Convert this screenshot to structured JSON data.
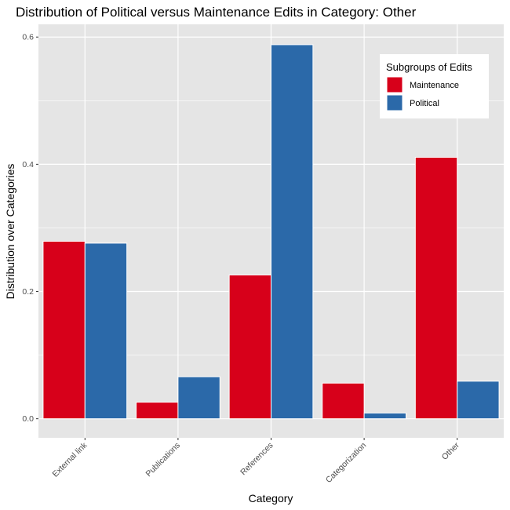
{
  "chart_data": {
    "type": "bar",
    "title": "Distribution of Political versus Maintenance Edits in Category: Other",
    "xlabel": "Category",
    "ylabel": "Distribution over Categories",
    "categories": [
      "External link",
      "Publications",
      "References",
      "Categorization",
      "Other"
    ],
    "series": [
      {
        "name": "Maintenance",
        "color": "#d7001a",
        "values": [
          0.279,
          0.026,
          0.226,
          0.056,
          0.411
        ]
      },
      {
        "name": "Political",
        "color": "#2b69a9",
        "values": [
          0.276,
          0.066,
          0.588,
          0.009,
          0.059
        ]
      }
    ],
    "ylim": [
      -0.03,
      0.62
    ],
    "yticks": [
      0.0,
      0.2,
      0.4,
      0.6
    ],
    "ytick_labels": [
      "0.0",
      "0.2",
      "0.4",
      "0.6"
    ],
    "legend": {
      "title": "Subgroups of Edits",
      "position": "top-right"
    },
    "grid": true,
    "panel_background": "#e5e5e5",
    "grid_color": "#ffffff"
  }
}
